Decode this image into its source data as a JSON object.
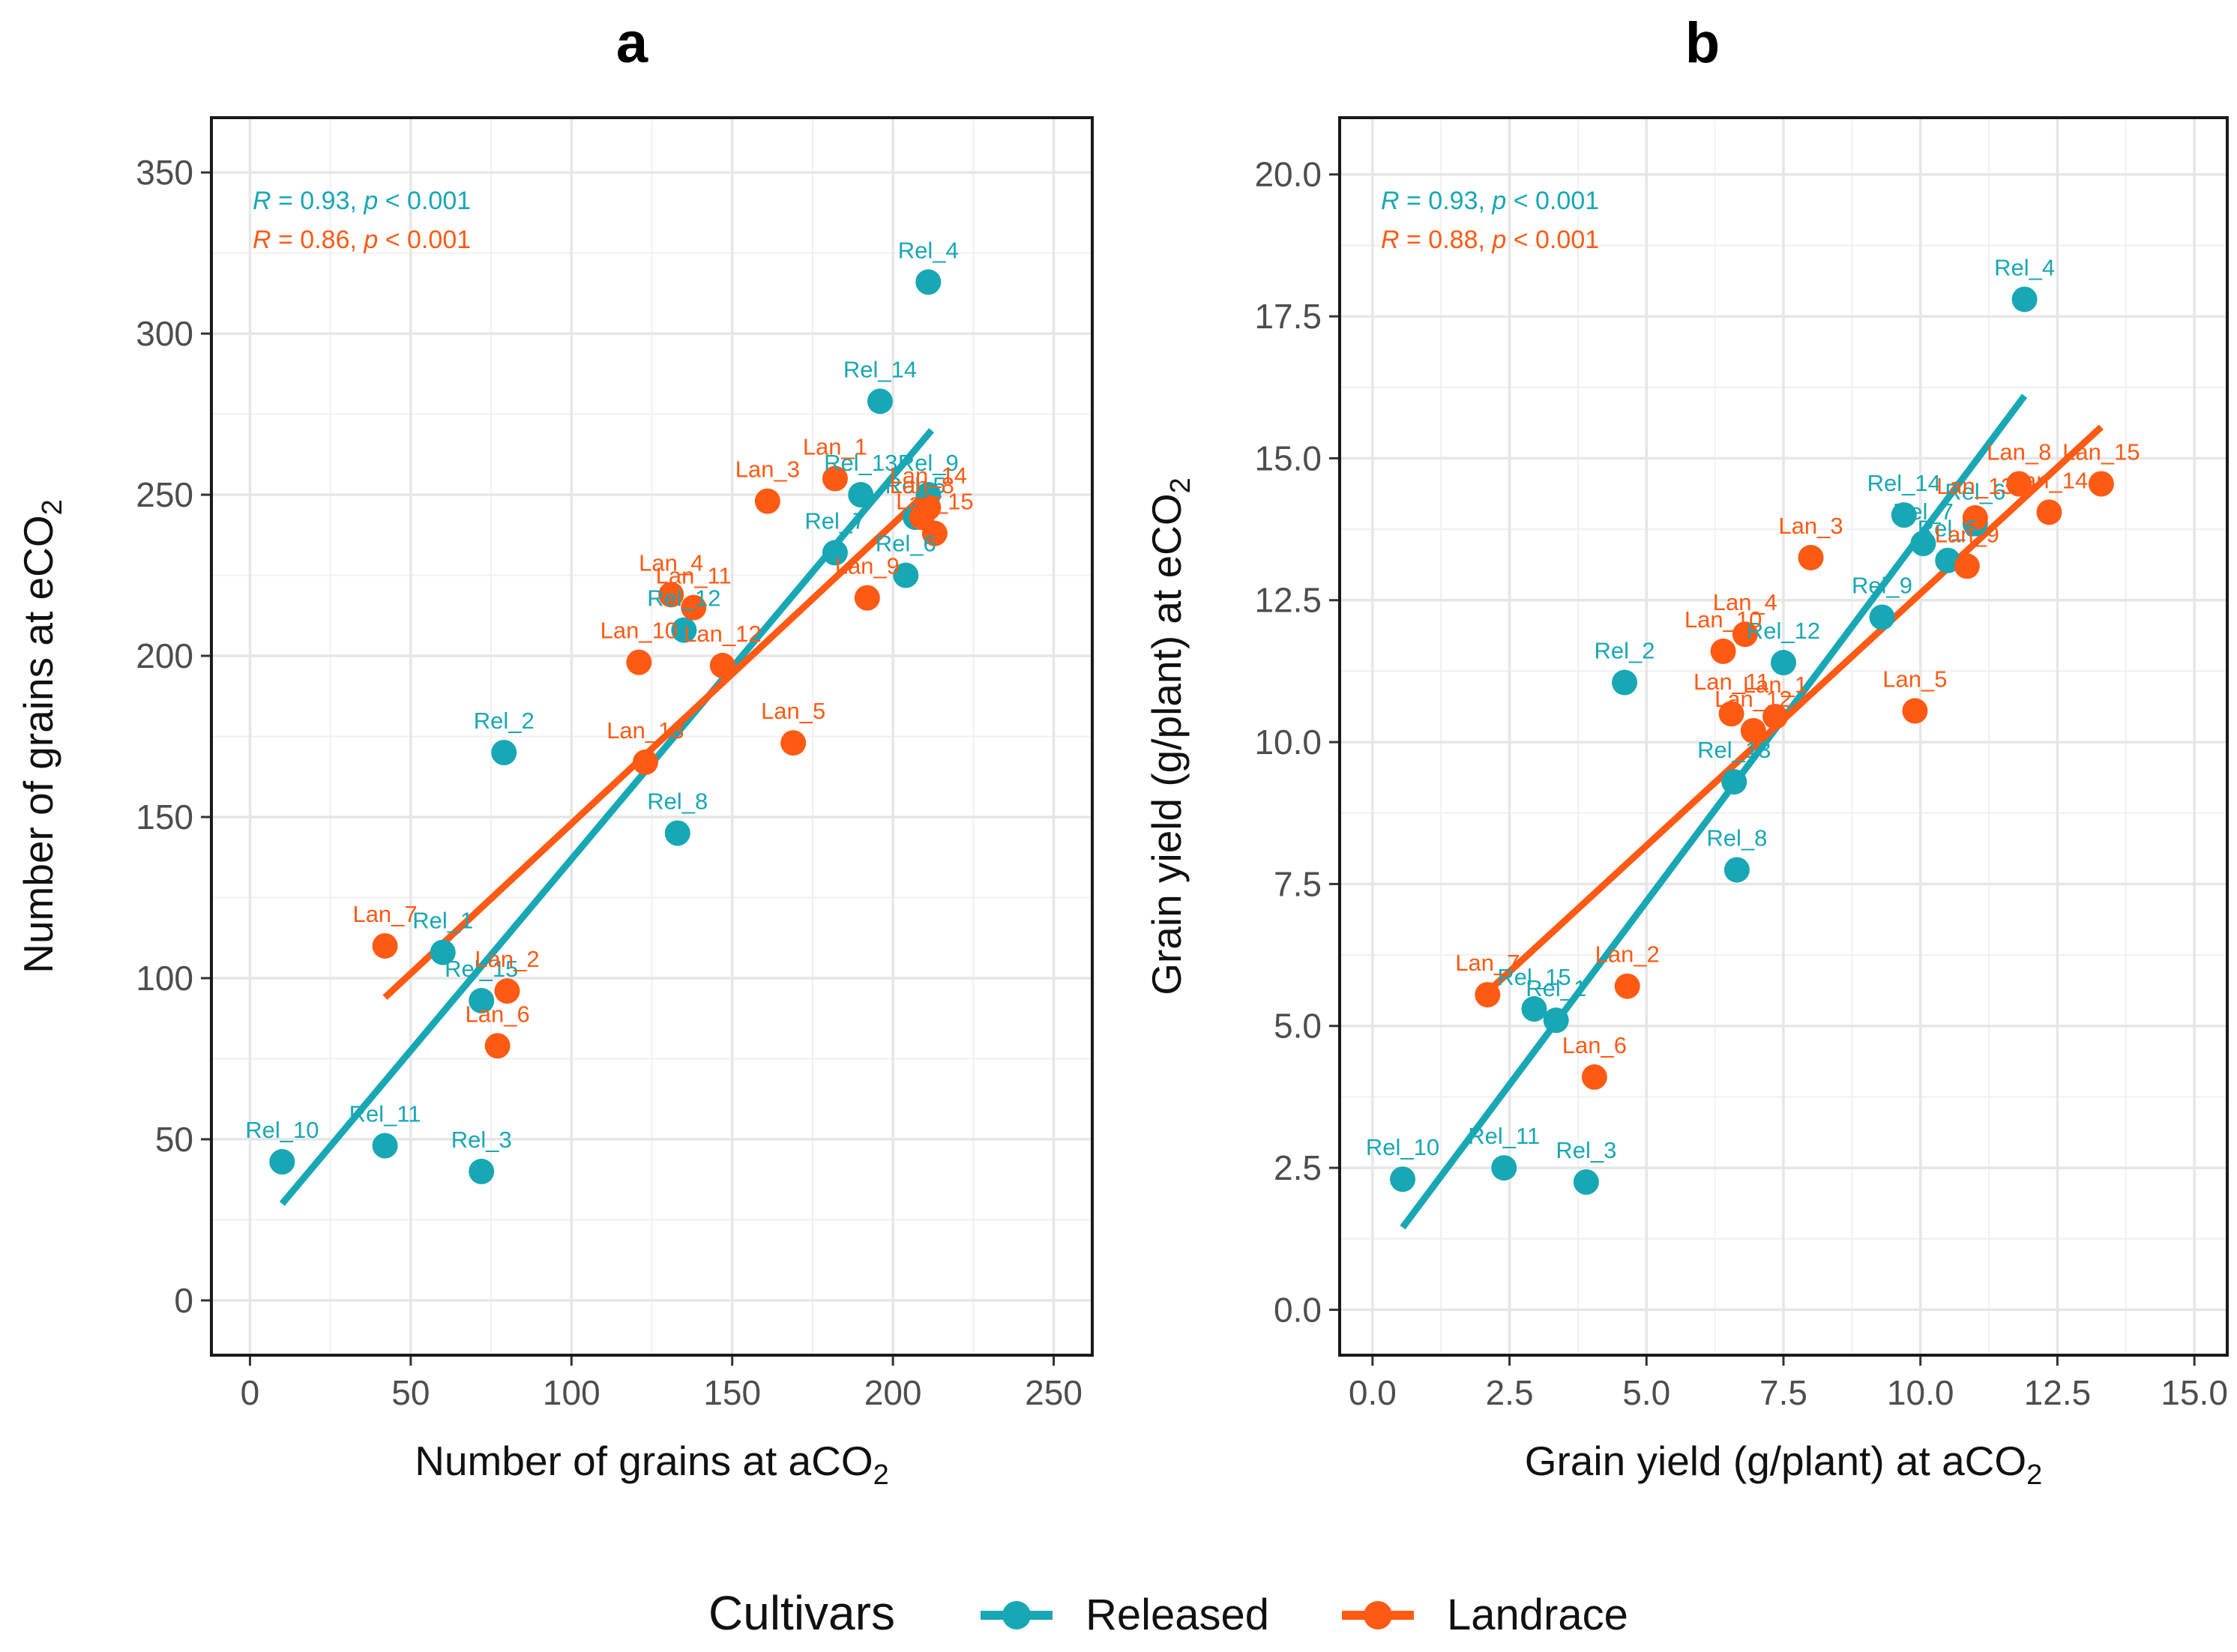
{
  "colors": {
    "Released": "#17A7B5",
    "Landrace": "#FF5A14",
    "grid": "#e6e6e6",
    "frame": "#1a1a1a"
  },
  "legend": {
    "title": "Cultivars",
    "entries": [
      {
        "name": "Released",
        "color": "#17A7B5"
      },
      {
        "name": "Landrace",
        "color": "#FF5A14"
      }
    ]
  },
  "chart_data": [
    {
      "type": "scatter",
      "title": "a",
      "xlabel": "Number of grains at aCO₂",
      "ylabel": "Number of grains at eCO₂",
      "xlim": [
        -12,
        262
      ],
      "ylim": [
        -17,
        367
      ],
      "xticks": [
        0,
        50,
        100,
        150,
        200,
        250
      ],
      "yticks": [
        0,
        50,
        100,
        150,
        200,
        250,
        300,
        350
      ],
      "xtick_labels": [
        "0",
        "50",
        "100",
        "150",
        "200",
        "250"
      ],
      "ytick_labels": [
        "0",
        "50",
        "100",
        "150",
        "200",
        "250",
        "300",
        "350"
      ],
      "grid": true,
      "stats": [
        {
          "series": "Released",
          "text": "R = 0.93, p < 0.001"
        },
        {
          "series": "Landrace",
          "text": "R = 0.86, p < 0.001"
        }
      ],
      "series": [
        {
          "name": "Released",
          "fit": {
            "x": [
              10,
              212
            ],
            "y": [
              30,
              270
            ]
          },
          "points": [
            {
              "label": "Rel_1",
              "x": 60,
              "y": 108
            },
            {
              "label": "Rel_2",
              "x": 79,
              "y": 170
            },
            {
              "label": "Rel_3",
              "x": 72,
              "y": 40
            },
            {
              "label": "Rel_4",
              "x": 211,
              "y": 316
            },
            {
              "label": "Rel_5",
              "x": 207,
              "y": 243
            },
            {
              "label": "Rel_6",
              "x": 204,
              "y": 225
            },
            {
              "label": "Rel_7",
              "x": 182,
              "y": 232
            },
            {
              "label": "Rel_8",
              "x": 133,
              "y": 145
            },
            {
              "label": "Rel_9",
              "x": 211,
              "y": 250
            },
            {
              "label": "Rel_10",
              "x": 10,
              "y": 43
            },
            {
              "label": "Rel_11",
              "x": 42,
              "y": 48
            },
            {
              "label": "Rel_12",
              "x": 135,
              "y": 208
            },
            {
              "label": "Rel_13",
              "x": 190,
              "y": 250
            },
            {
              "label": "Rel_14",
              "x": 196,
              "y": 279
            },
            {
              "label": "Rel_15",
              "x": 72,
              "y": 93
            }
          ]
        },
        {
          "name": "Landrace",
          "fit": {
            "x": [
              42,
              213
            ],
            "y": [
              94,
              253
            ]
          },
          "points": [
            {
              "label": "Lan_1",
              "x": 182,
              "y": 255
            },
            {
              "label": "Lan_2",
              "x": 80,
              "y": 96
            },
            {
              "label": "Lan_3",
              "x": 161,
              "y": 248
            },
            {
              "label": "Lan_4",
              "x": 131,
              "y": 219
            },
            {
              "label": "Lan_5",
              "x": 169,
              "y": 173
            },
            {
              "label": "Lan_6",
              "x": 77,
              "y": 79
            },
            {
              "label": "Lan_7",
              "x": 42,
              "y": 110
            },
            {
              "label": "Lan_8",
              "x": 209,
              "y": 243
            },
            {
              "label": "Lan_9",
              "x": 192,
              "y": 218
            },
            {
              "label": "Lan_10",
              "x": 121,
              "y": 198
            },
            {
              "label": "Lan_11",
              "x": 138,
              "y": 215
            },
            {
              "label": "Lan_12",
              "x": 147,
              "y": 197
            },
            {
              "label": "Lan_13",
              "x": 123,
              "y": 167
            },
            {
              "label": "Lan_14",
              "x": 211,
              "y": 246
            },
            {
              "label": "Lan_15",
              "x": 213,
              "y": 238
            }
          ]
        }
      ]
    },
    {
      "type": "scatter",
      "title": "b",
      "xlabel": "Grain yield (g/plant) at aCO₂",
      "ylabel": "Grain yield (g/plant) at eCO₂",
      "xlim": [
        -0.6,
        15.6
      ],
      "ylim": [
        -0.8,
        21.0
      ],
      "xticks": [
        0,
        2.5,
        5,
        7.5,
        10,
        12.5,
        15
      ],
      "yticks": [
        0,
        2.5,
        5,
        7.5,
        10,
        12.5,
        15,
        17.5,
        20
      ],
      "xtick_labels": [
        "0.0",
        "2.5",
        "5.0",
        "7.5",
        "10.0",
        "12.5",
        "15.0"
      ],
      "ytick_labels": [
        "0.0",
        "2.5",
        "5.0",
        "7.5",
        "10.0",
        "12.5",
        "15.0",
        "17.5",
        "20.0"
      ],
      "grid": true,
      "stats": [
        {
          "series": "Released",
          "text": "R = 0.93, p < 0.001"
        },
        {
          "series": "Landrace",
          "text": "R = 0.88, p < 0.001"
        }
      ],
      "series": [
        {
          "name": "Released",
          "fit": {
            "x": [
              0.55,
              11.9
            ],
            "y": [
              1.45,
              16.1
            ]
          },
          "points": [
            {
              "label": "Rel_1",
              "x": 3.35,
              "y": 5.1
            },
            {
              "label": "Rel_2",
              "x": 4.6,
              "y": 11.05
            },
            {
              "label": "Rel_3",
              "x": 3.9,
              "y": 2.25
            },
            {
              "label": "Rel_4",
              "x": 11.9,
              "y": 17.8
            },
            {
              "label": "Rel_5",
              "x": 10.5,
              "y": 13.2
            },
            {
              "label": "Rel_6",
              "x": 11.0,
              "y": 13.85
            },
            {
              "label": "Rel_7",
              "x": 10.05,
              "y": 13.5
            },
            {
              "label": "Rel_8",
              "x": 6.65,
              "y": 7.75
            },
            {
              "label": "Rel_9",
              "x": 9.3,
              "y": 12.2
            },
            {
              "label": "Rel_10",
              "x": 0.55,
              "y": 2.3
            },
            {
              "label": "Rel_11",
              "x": 2.4,
              "y": 2.5
            },
            {
              "label": "Rel_12",
              "x": 7.5,
              "y": 11.4
            },
            {
              "label": "Rel_13",
              "x": 6.6,
              "y": 9.3
            },
            {
              "label": "Rel_14",
              "x": 9.7,
              "y": 14.0
            },
            {
              "label": "Rel_15",
              "x": 2.95,
              "y": 5.3
            }
          ]
        },
        {
          "name": "Landrace",
          "fit": {
            "x": [
              2.1,
              13.3
            ],
            "y": [
              5.6,
              15.55
            ]
          },
          "points": [
            {
              "label": "Lan_1",
              "x": 7.35,
              "y": 10.45
            },
            {
              "label": "Lan_2",
              "x": 4.65,
              "y": 5.7
            },
            {
              "label": "Lan_3",
              "x": 8.0,
              "y": 13.25
            },
            {
              "label": "Lan_4",
              "x": 6.8,
              "y": 11.9
            },
            {
              "label": "Lan_5",
              "x": 9.9,
              "y": 10.55
            },
            {
              "label": "Lan_6",
              "x": 4.05,
              "y": 4.1
            },
            {
              "label": "Lan_7",
              "x": 2.1,
              "y": 5.55
            },
            {
              "label": "Lan_8",
              "x": 11.8,
              "y": 14.55
            },
            {
              "label": "Lan_9",
              "x": 10.85,
              "y": 13.1
            },
            {
              "label": "Lan_10",
              "x": 6.4,
              "y": 11.6
            },
            {
              "label": "Lan_11",
              "x": 6.55,
              "y": 10.5
            },
            {
              "label": "Lan_12",
              "x": 6.95,
              "y": 10.2
            },
            {
              "label": "Lan_13",
              "x": 11.0,
              "y": 13.95
            },
            {
              "label": "Lan_14",
              "x": 12.35,
              "y": 14.05
            },
            {
              "label": "Lan_15",
              "x": 13.3,
              "y": 14.55
            }
          ]
        }
      ]
    }
  ]
}
